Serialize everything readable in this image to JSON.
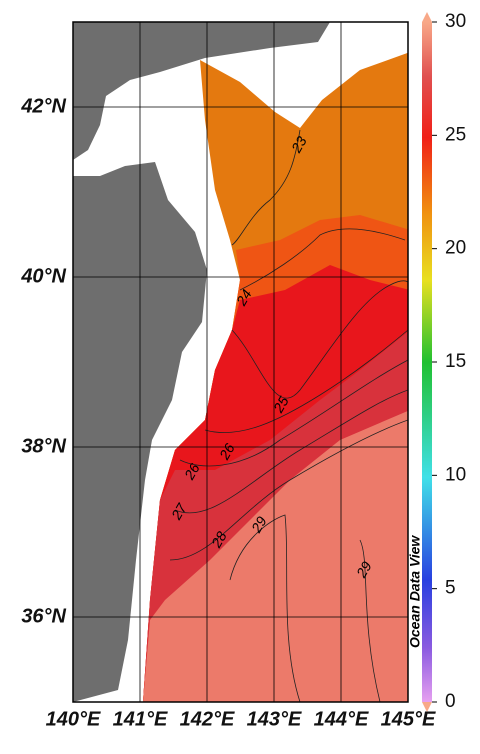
{
  "map": {
    "lon_ticks": [
      {
        "value": 140,
        "label": "140°E"
      },
      {
        "value": 141,
        "label": "141°E"
      },
      {
        "value": 142,
        "label": "142°E"
      },
      {
        "value": 143,
        "label": "143°E"
      },
      {
        "value": 144,
        "label": "144°E"
      },
      {
        "value": 145,
        "label": "145°E"
      }
    ],
    "lat_ticks": [
      {
        "value": 42,
        "label": "42°N"
      },
      {
        "value": 40,
        "label": "40°N"
      },
      {
        "value": 38,
        "label": "38°N"
      },
      {
        "value": 36,
        "label": "36°N"
      }
    ],
    "contour_labels": [
      23,
      24,
      25,
      26,
      26,
      27,
      28,
      29,
      29
    ],
    "colorbar": {
      "range": [
        0,
        30
      ],
      "ticks": [
        0,
        5,
        10,
        15,
        20,
        25,
        30
      ]
    },
    "watermark": "Ocean Data View"
  }
}
